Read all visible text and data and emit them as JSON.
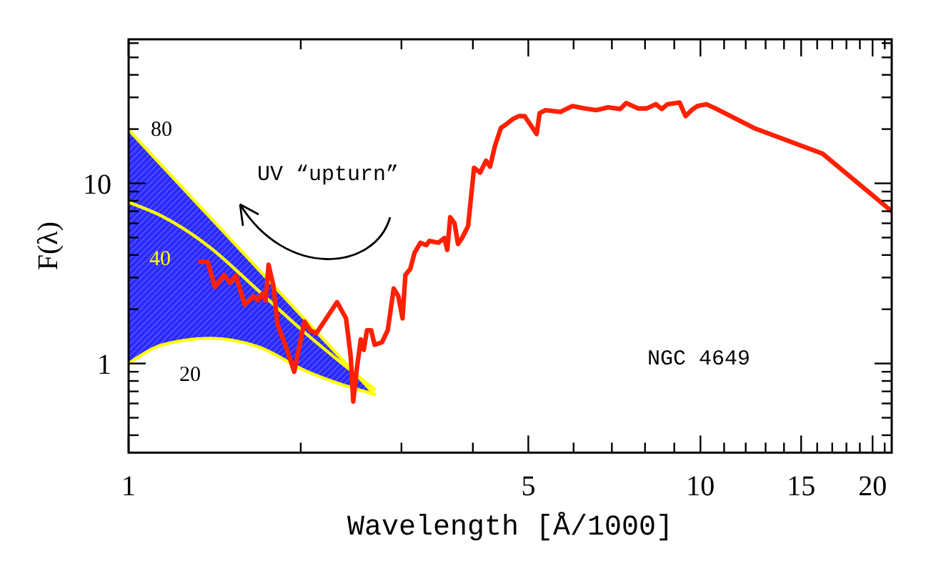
{
  "chart_data": {
    "type": "line",
    "xlabel": "Wavelength [Å/1000]",
    "ylabel": "F(λ)",
    "log": "xy",
    "color": "#2a2aff",
    "grid": false,
    "legend": false,
    "marker": "none",
    "line_style": "solid",
    "xlim": [
      1,
      21.6
    ],
    "ylim": [
      0.32,
      63
    ],
    "xticks": [
      1,
      {
        "value": 2,
        "label": null
      },
      {
        "value": 3,
        "label": null
      },
      {
        "value": 4,
        "label": null
      },
      5,
      {
        "value": 6,
        "label": null
      },
      {
        "value": 7,
        "label": null
      },
      {
        "value": 8,
        "label": null
      },
      {
        "value": 9,
        "label": null
      },
      10,
      {
        "value": 11,
        "label": null
      },
      {
        "value": 12,
        "label": null
      },
      {
        "value": 13,
        "label": null
      },
      {
        "value": 14,
        "label": null
      },
      15,
      {
        "value": 16,
        "label": null
      },
      {
        "value": 17,
        "label": null
      },
      {
        "value": 18,
        "label": null
      },
      {
        "value": 19,
        "label": null
      },
      20,
      {
        "value": 21,
        "label": null
      }
    ],
    "yticks": [
      {
        "value": 0.4,
        "label": null
      },
      {
        "value": 0.5,
        "label": null
      },
      {
        "value": 0.6,
        "label": null
      },
      {
        "value": 0.7,
        "label": null
      },
      {
        "value": 0.8,
        "label": null
      },
      {
        "value": 0.9,
        "label": null
      },
      1,
      {
        "value": 2,
        "label": null
      },
      {
        "value": 3,
        "label": null
      },
      {
        "value": 4,
        "label": null
      },
      {
        "value": 5,
        "label": null
      },
      {
        "value": 6,
        "label": null
      },
      {
        "value": 7,
        "label": null
      },
      {
        "value": 8,
        "label": null
      },
      {
        "value": 9,
        "label": null
      },
      10,
      {
        "value": 20,
        "label": null
      },
      {
        "value": 30,
        "label": null
      },
      {
        "value": 40,
        "label": null
      },
      {
        "value": 50,
        "label": null
      },
      {
        "value": 60,
        "label": null
      }
    ],
    "annotations": [
      "UV “upturn”",
      "NGC 4649"
    ],
    "series": [
      {
        "name": "80",
        "type": "line",
        "color": "#ffff00",
        "x": [
          1,
          1.147,
          1.389,
          1.683,
          2.04,
          2.693
        ],
        "values": [
          19.8,
          12.4,
          6.46,
          3.36,
          1.74,
          0.673
        ]
      },
      {
        "name": "40",
        "type": "line",
        "color": "#ffff00",
        "x": [
          1,
          1.147,
          1.389,
          1.683,
          2.04,
          2.693
        ],
        "values": [
          7.84,
          6.54,
          4.4,
          2.55,
          1.47,
          0.72
        ],
        "lower": [
          1.0,
          1.27,
          1.38,
          1.24,
          0.91,
          0.673
        ],
        "upper": [
          19.8,
          12.4,
          6.46,
          3.36,
          1.74,
          0.673
        ]
      },
      {
        "name": "20",
        "type": "line",
        "color": "#ffff00",
        "x": [
          1,
          1.147,
          1.389,
          1.683,
          2.04,
          2.693
        ],
        "values": [
          1.0,
          1.27,
          1.38,
          1.24,
          0.91,
          0.673
        ]
      },
      {
        "color": "#ff2000",
        "x": [
          1.334,
          1.375,
          1.416,
          1.468,
          1.504,
          1.54,
          1.596,
          1.655,
          1.683,
          1.715,
          1.736,
          1.757,
          1.791,
          1.821,
          1.888,
          1.948,
          2.029,
          2.078,
          2.129,
          2.315,
          2.4,
          2.446,
          2.471,
          2.506,
          2.547,
          2.578,
          2.611,
          2.655,
          2.693,
          2.773,
          2.839,
          2.908,
          2.963,
          3.013,
          3.048,
          3.109,
          3.162,
          3.238,
          3.317,
          3.357,
          3.481,
          3.566,
          3.608,
          3.651,
          3.715,
          3.767,
          3.829,
          3.923,
          4.019,
          4.118,
          4.217,
          4.286,
          4.372,
          4.477,
          4.583,
          4.697,
          4.81,
          4.927,
          5.047,
          5.17,
          5.233,
          5.36,
          5.689,
          5.97,
          6.265,
          6.574,
          6.898,
          7.238,
          7.413,
          7.775,
          8.057,
          8.356,
          8.557,
          8.763,
          9.193,
          9.418,
          9.646,
          9.88,
          10.24,
          10.62,
          12.41,
          16.35,
          21.6
        ],
        "values": [
          3.67,
          3.67,
          2.65,
          3.1,
          2.81,
          3.08,
          2.12,
          2.36,
          2.24,
          2.45,
          2.24,
          3.53,
          2.71,
          1.65,
          1.22,
          0.9,
          1.71,
          1.53,
          1.47,
          2.19,
          1.78,
          1.09,
          0.615,
          0.93,
          1.36,
          1.19,
          1.53,
          1.53,
          1.27,
          1.31,
          1.53,
          2.61,
          2.36,
          1.78,
          3.1,
          3.35,
          4.11,
          4.68,
          4.54,
          4.79,
          4.68,
          4.97,
          4.27,
          6.48,
          6.01,
          4.61,
          4.97,
          5.78,
          12.19,
          11.46,
          13.35,
          12.37,
          16.14,
          20.27,
          21.38,
          22.71,
          23.6,
          23.6,
          21.07,
          18.79,
          24.49,
          25.47,
          24.89,
          26.86,
          26.05,
          25.47,
          26.43,
          25.85,
          27.9,
          26.05,
          26.05,
          27.48,
          25.85,
          27.48,
          28.11,
          23.6,
          25.47,
          26.86,
          27.48,
          26.05,
          20.27,
          14.62,
          7.0
        ]
      }
    ]
  }
}
